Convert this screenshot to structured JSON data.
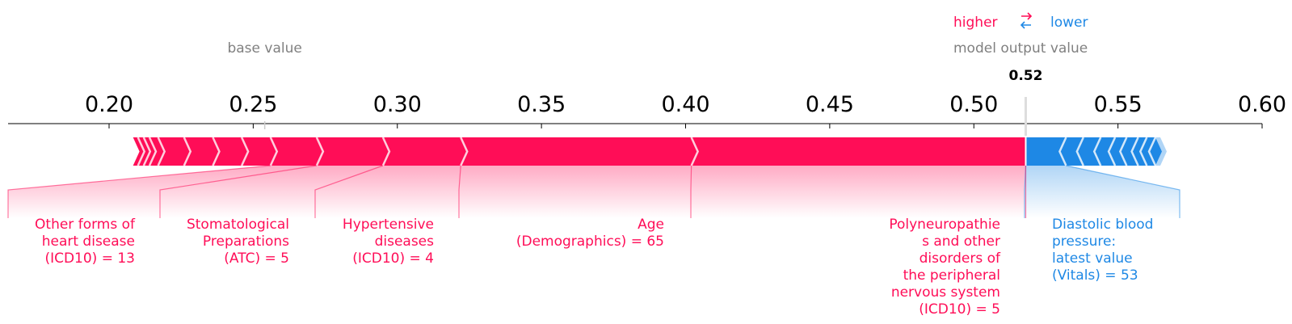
{
  "legend": {
    "higher_label": "higher",
    "lower_label": "lower",
    "base_value_label": "base value",
    "output_value_label": "model output value"
  },
  "colors": {
    "positive": "#ff0d57",
    "negative": "#1e88e5",
    "axis": "#000000",
    "muted_text": "#808080"
  },
  "chart_data": {
    "type": "force",
    "title": "",
    "xlabel": "",
    "ylabel": "",
    "xlim": [
      0.165,
      0.6
    ],
    "ticks": [
      "0.20",
      "0.25",
      "0.30",
      "0.35",
      "0.40",
      "0.45",
      "0.50",
      "0.55",
      "0.60"
    ],
    "tick_values": [
      0.2,
      0.25,
      0.3,
      0.35,
      0.4,
      0.45,
      0.5,
      0.55,
      0.6
    ],
    "base_value": 0.254,
    "output_value": 0.518,
    "output_value_text": "0.52",
    "positive_breaks": [
      0.21,
      0.212,
      0.214,
      0.217,
      0.226,
      0.236,
      0.246,
      0.256,
      0.272,
      0.295,
      0.322,
      0.402
    ],
    "negative_breaks": [
      0.532,
      0.538,
      0.544,
      0.549,
      0.553,
      0.557,
      0.56,
      0.563
    ],
    "labeled_features": [
      {
        "label_lines": [
          "Other forms of",
          "heart disease",
          "(ICD10) = 13"
        ],
        "effect": "positive",
        "start": 0.256,
        "end": 0.272
      },
      {
        "label_lines": [
          "Stomatological",
          "Preparations",
          "(ATC) = 5"
        ],
        "effect": "positive",
        "start": 0.272,
        "end": 0.295
      },
      {
        "label_lines": [
          "Hypertensive",
          "diseases",
          "(ICD10) = 4"
        ],
        "effect": "positive",
        "start": 0.295,
        "end": 0.322
      },
      {
        "label_lines": [
          "Age",
          "(Demographics) = 65"
        ],
        "effect": "positive",
        "start": 0.322,
        "end": 0.402
      },
      {
        "label_lines": [
          "Polyneuropathie",
          "s and other",
          "disorders of",
          "the peripheral",
          "nervous system",
          "(ICD10) = 5"
        ],
        "effect": "positive",
        "start": 0.402,
        "end": 0.518
      },
      {
        "label_lines": [
          "Diastolic blood",
          "pressure:",
          "latest value",
          "(Vitals) = 53"
        ],
        "effect": "negative",
        "start": 0.518,
        "end": 0.532
      }
    ]
  }
}
